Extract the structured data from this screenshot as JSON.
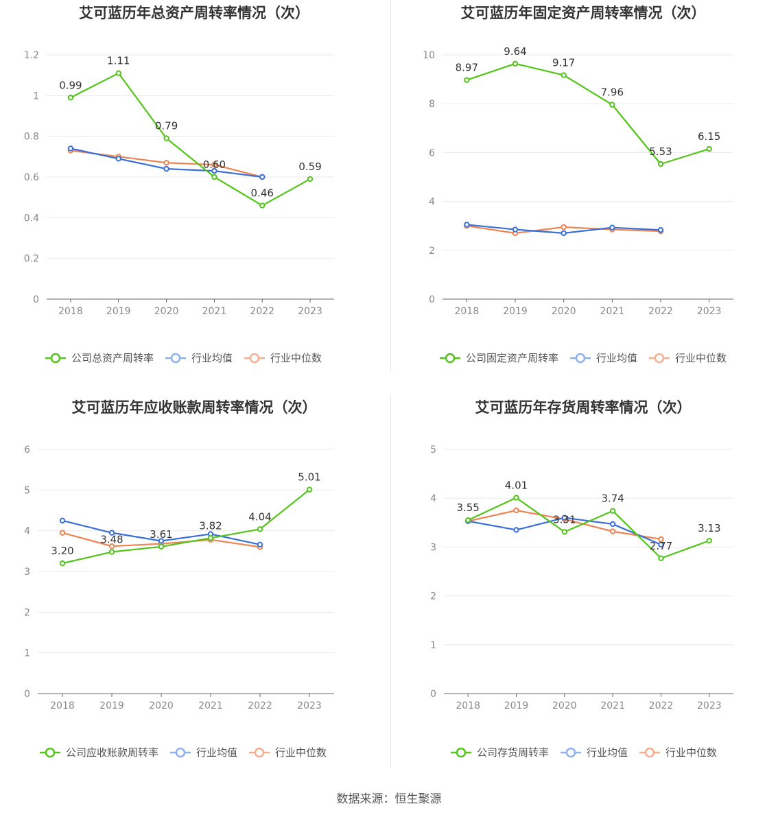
{
  "footer": "数据来源：恒生聚源",
  "colors": {
    "company": "#52c41a",
    "avg": "#3a6fd8",
    "median": "#ee8454",
    "axis": "#666666",
    "grid": "#e8e8ef"
  },
  "chart_data": [
    {
      "type": "line",
      "title": "艾可蓝历年总资产周转率情况（次）",
      "categories": [
        "2018",
        "2019",
        "2020",
        "2021",
        "2022",
        "2023"
      ],
      "ylim": [
        0,
        1.2
      ],
      "yticks": [
        "0",
        "0.2",
        "0.4",
        "0.6",
        "0.8",
        "1",
        "1.2"
      ],
      "series": [
        {
          "name": "公司总资产周转率",
          "values": [
            0.99,
            1.11,
            0.79,
            0.6,
            0.46,
            0.59
          ],
          "labels": [
            "0.99",
            "1.11",
            "0.79",
            "0.60",
            "0.46",
            "0.59"
          ]
        },
        {
          "name": "行业均值",
          "values": [
            0.74,
            0.69,
            0.64,
            0.63,
            0.6,
            null
          ]
        },
        {
          "name": "行业中位数",
          "values": [
            0.73,
            0.7,
            0.67,
            0.66,
            0.6,
            null
          ]
        }
      ],
      "legend": "bottom"
    },
    {
      "type": "line",
      "title": "艾可蓝历年固定资产周转率情况（次）",
      "categories": [
        "2018",
        "2019",
        "2020",
        "2021",
        "2022",
        "2023"
      ],
      "ylim": [
        0,
        10
      ],
      "yticks": [
        "0",
        "2",
        "4",
        "6",
        "8",
        "10"
      ],
      "series": [
        {
          "name": "公司固定资产周转率",
          "values": [
            8.97,
            9.64,
            9.17,
            7.96,
            5.53,
            6.15
          ],
          "labels": [
            "8.97",
            "9.64",
            "9.17",
            "7.96",
            "5.53",
            "6.15"
          ]
        },
        {
          "name": "行业均值",
          "values": [
            3.05,
            2.85,
            2.7,
            2.93,
            2.83,
            null
          ]
        },
        {
          "name": "行业中位数",
          "values": [
            3.0,
            2.7,
            2.95,
            2.85,
            2.78,
            null
          ]
        }
      ],
      "legend": "bottom"
    },
    {
      "type": "line",
      "title": "艾可蓝历年应收账款周转率情况（次）",
      "categories": [
        "2018",
        "2019",
        "2020",
        "2021",
        "2022",
        "2023"
      ],
      "ylim": [
        0,
        6
      ],
      "yticks": [
        "0",
        "1",
        "2",
        "3",
        "4",
        "5",
        "6"
      ],
      "series": [
        {
          "name": "公司应收账款周转率",
          "values": [
            3.2,
            3.48,
            3.61,
            3.82,
            4.04,
            5.01
          ],
          "labels": [
            "3.20",
            "3.48",
            "3.61",
            "3.82",
            "4.04",
            "5.01"
          ]
        },
        {
          "name": "行业均值",
          "values": [
            4.25,
            3.95,
            3.75,
            3.92,
            3.66,
            null
          ]
        },
        {
          "name": "行业中位数",
          "values": [
            3.95,
            3.62,
            3.68,
            3.78,
            3.6,
            null
          ]
        }
      ],
      "legend": "bottom"
    },
    {
      "type": "line",
      "title": "艾可蓝历年存货周转率情况（次）",
      "categories": [
        "2018",
        "2019",
        "2020",
        "2021",
        "2022",
        "2023"
      ],
      "ylim": [
        0,
        5
      ],
      "yticks": [
        "0",
        "1",
        "2",
        "3",
        "4",
        "5"
      ],
      "series": [
        {
          "name": "公司存货周转率",
          "values": [
            3.55,
            4.01,
            3.31,
            3.74,
            2.77,
            3.13
          ],
          "labels": [
            "3.55",
            "4.01",
            "3.31",
            "3.74",
            "2.77",
            "3.13"
          ]
        },
        {
          "name": "行业均值",
          "values": [
            3.53,
            3.35,
            3.6,
            3.47,
            3.05,
            null
          ]
        },
        {
          "name": "行业中位数",
          "values": [
            3.53,
            3.75,
            3.57,
            3.32,
            3.16,
            null
          ]
        }
      ],
      "legend": "bottom"
    }
  ]
}
